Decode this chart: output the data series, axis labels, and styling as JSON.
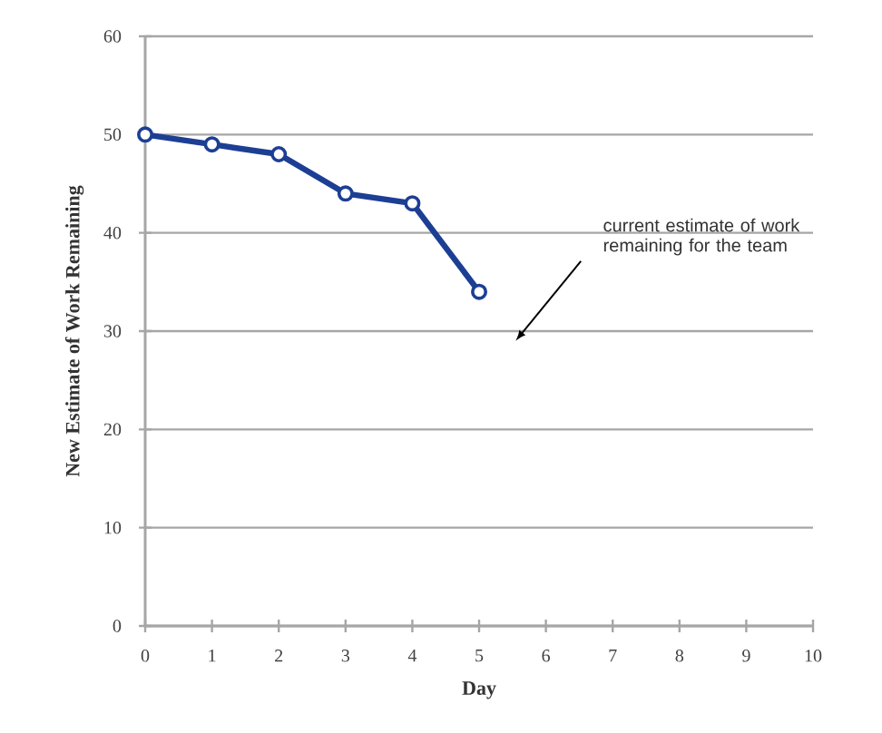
{
  "chart_data": {
    "type": "line",
    "xlabel": "Day",
    "ylabel": "New Estimate of Work Remaining",
    "x": [
      0,
      1,
      2,
      3,
      4,
      5
    ],
    "series": [
      {
        "color": "#1c3f94",
        "values": [
          50,
          49,
          48,
          44,
          43,
          34
        ]
      }
    ],
    "xlim": [
      0,
      10
    ],
    "xticks": [
      0,
      1,
      2,
      3,
      4,
      5,
      6,
      7,
      8,
      9,
      10
    ],
    "ylim": [
      0,
      60
    ],
    "yticks": [
      0,
      10,
      20,
      30,
      40,
      50,
      60
    ],
    "grid": "y",
    "marker": "circle",
    "line_style": "solid",
    "annotations": [
      "current estimate of work remaining for the team"
    ]
  }
}
